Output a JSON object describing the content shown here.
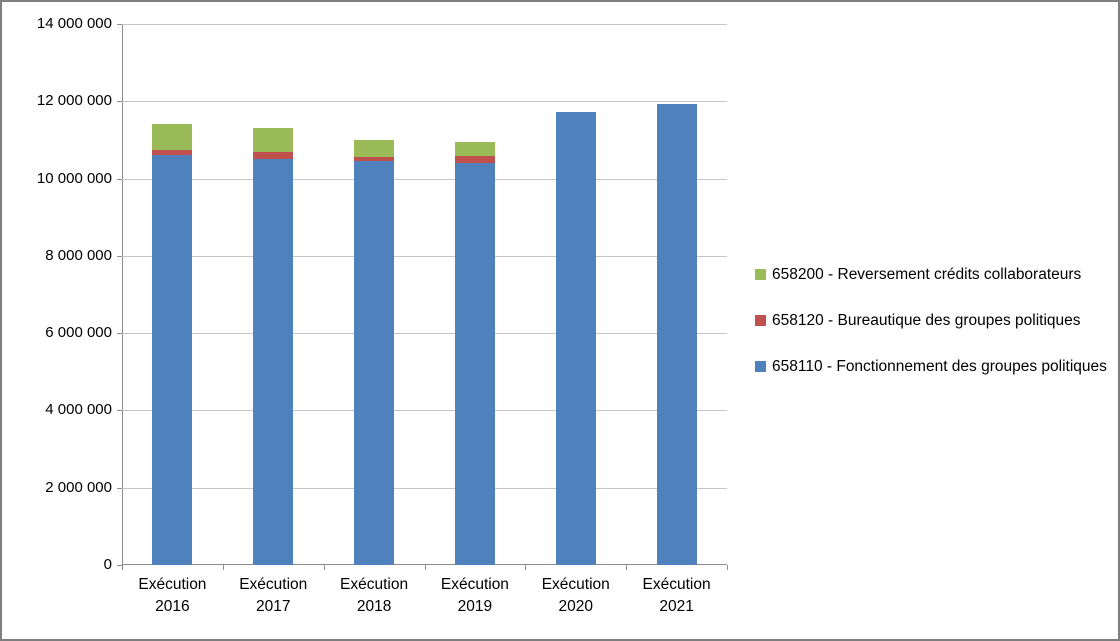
{
  "chart_data": {
    "type": "bar",
    "stacked": true,
    "title": "",
    "xlabel": "",
    "ylabel": "",
    "categories": [
      "Exécution 2016",
      "Exécution 2017",
      "Exécution 2018",
      "Exécution 2019",
      "Exécution 2020",
      "Exécution 2021"
    ],
    "series": [
      {
        "name": "658110 - Fonctionnement des groupes politiques",
        "color": "#4f81bd",
        "values": [
          10600000,
          10500000,
          10450000,
          10400000,
          11720000,
          11930000
        ]
      },
      {
        "name": "658120 - Bureautique des groupes politiques",
        "color": "#c0504d",
        "values": [
          150000,
          200000,
          100000,
          180000,
          0,
          0
        ]
      },
      {
        "name": "658200 - Reversement crédits collaborateurs",
        "color": "#9bbb59",
        "values": [
          670000,
          600000,
          450000,
          370000,
          0,
          0
        ]
      }
    ],
    "legend_order_top_to_bottom": [
      "658200 - Reversement crédits collaborateurs",
      "658120 - Bureautique des groupes politiques",
      "658110 - Fonctionnement des groupes politiques"
    ],
    "legend_position": "right",
    "grid": true,
    "ylim": [
      0,
      14000000
    ],
    "ytick_step": 2000000,
    "ytick_labels": [
      "0",
      "2 000 000",
      "4 000 000",
      "6 000 000",
      "8 000 000",
      "10 000 000",
      "12 000 000",
      "14 000 000"
    ],
    "colors": {
      "gridline": "#c6c6c6",
      "axis": "#8c8c8c",
      "border": "#7f7f7f",
      "background": "#ffffff"
    }
  }
}
